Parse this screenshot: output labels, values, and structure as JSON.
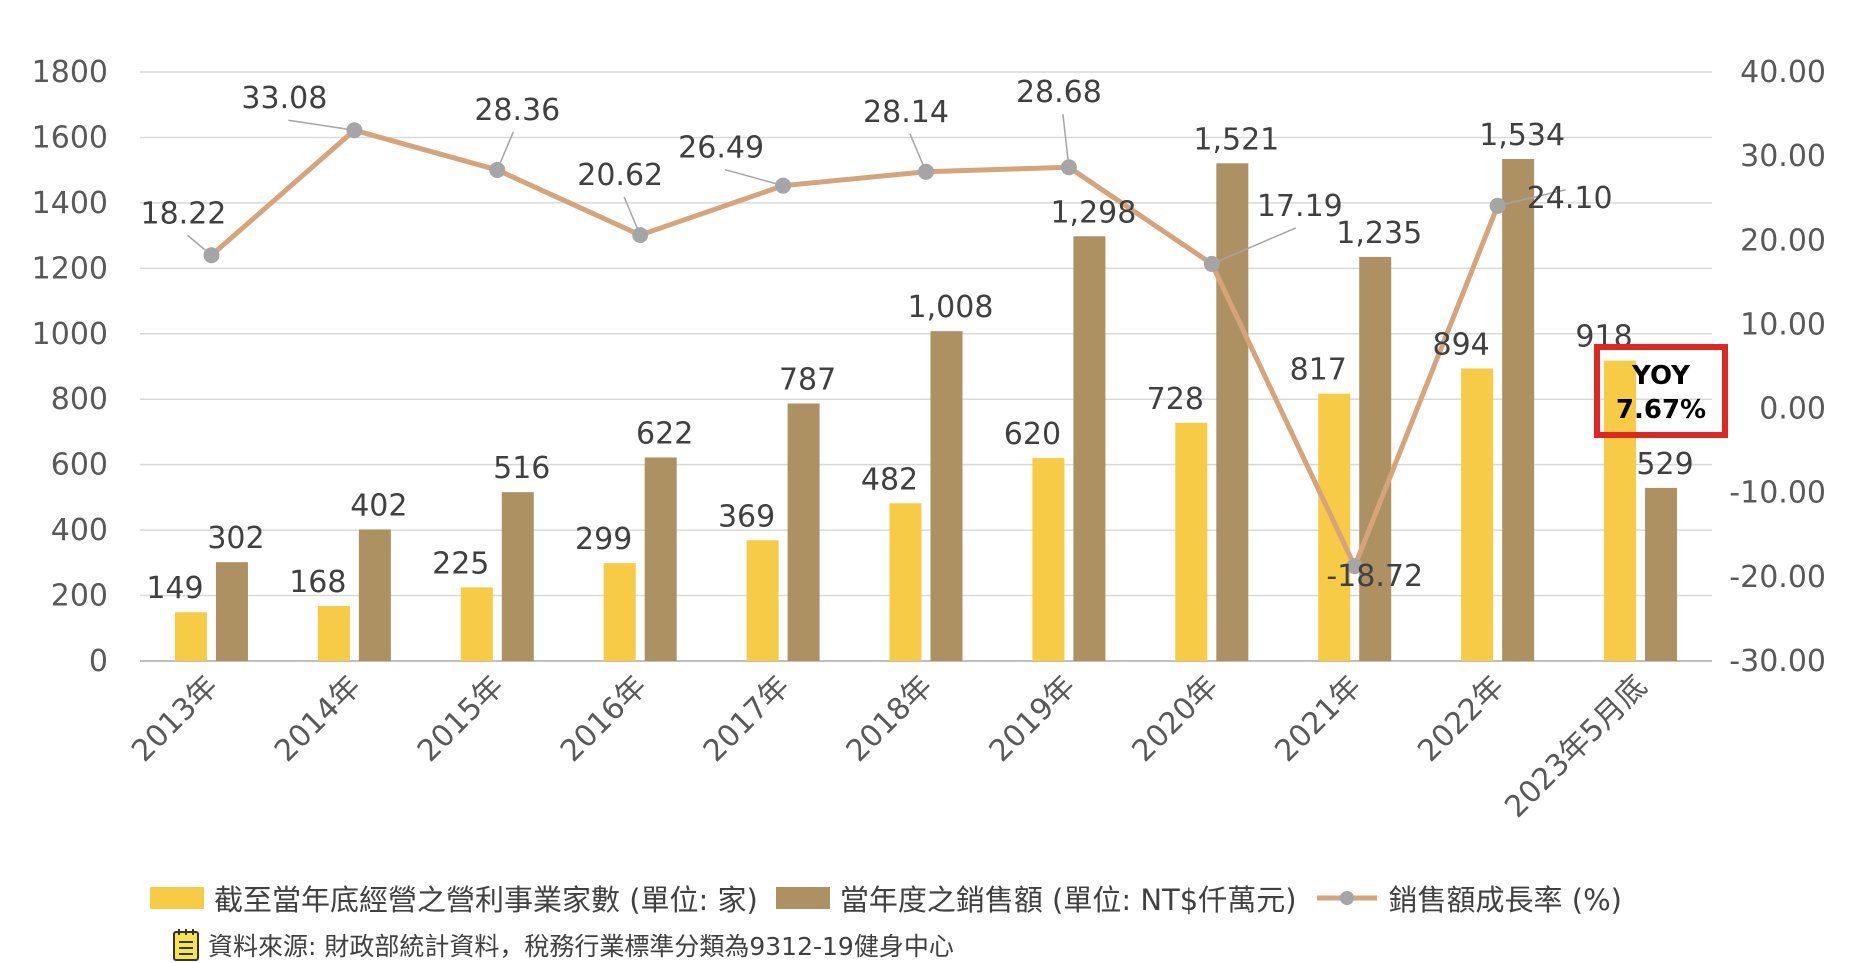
{
  "chart_data": {
    "type": "bar",
    "categories": [
      "2013年",
      "2014年",
      "2015年",
      "2016年",
      "2017年",
      "2018年",
      "2019年",
      "2020年",
      "2021年",
      "2022年",
      "2023年5月底"
    ],
    "series": [
      {
        "name": "截至當年底經營之營利事業家數 (單位: 家)",
        "type": "bar",
        "axis": "left",
        "color": "#F7CB45",
        "values": [
          149,
          168,
          225,
          299,
          369,
          482,
          620,
          728,
          817,
          894,
          918
        ],
        "labels": [
          "149",
          "168",
          "225",
          "299",
          "369",
          "482",
          "620",
          "728",
          "817",
          "894",
          "918"
        ]
      },
      {
        "name": "當年度之銷售額 (單位: NT$仟萬元)",
        "type": "bar",
        "axis": "left",
        "color": "#AE9162",
        "values": [
          302,
          402,
          516,
          622,
          787,
          1008,
          1298,
          1521,
          1235,
          1534,
          529
        ],
        "labels": [
          "302",
          "402",
          "516",
          "622",
          "787",
          "1,008",
          "1,298",
          "1,521",
          "1,235",
          "1,534",
          "529"
        ]
      },
      {
        "name": "銷售額成長率 (%)",
        "type": "line",
        "axis": "right",
        "color": "#D6A37A",
        "marker_color": "#A5A5A5",
        "values": [
          18.22,
          33.08,
          28.36,
          20.62,
          26.49,
          28.14,
          28.68,
          17.19,
          -18.72,
          24.1,
          null
        ],
        "labels": [
          "18.22",
          "33.08",
          "28.36",
          "20.62",
          "26.49",
          "28.14",
          "28.68",
          "17.19",
          "-18.72",
          "24.10",
          ""
        ]
      }
    ],
    "y_left": {
      "min": 0,
      "max": 1800,
      "ticks": [
        "0",
        "200",
        "400",
        "600",
        "800",
        "1000",
        "1200",
        "1400",
        "1600",
        "1800"
      ]
    },
    "y_right": {
      "min": -30,
      "max": 40,
      "ticks": [
        "-30.00",
        "-20.00",
        "-10.00",
        "0.00",
        "10.00",
        "20.00",
        "30.00",
        "40.00"
      ]
    },
    "grid": true,
    "legend_position": "bottom",
    "annotation": {
      "line1": "YOY",
      "line2": "7.67%",
      "border_color": "#E0261E"
    }
  },
  "source_note": "資料來源: 財政部統計資料，稅務行業標準分類為9312-19健身中心"
}
